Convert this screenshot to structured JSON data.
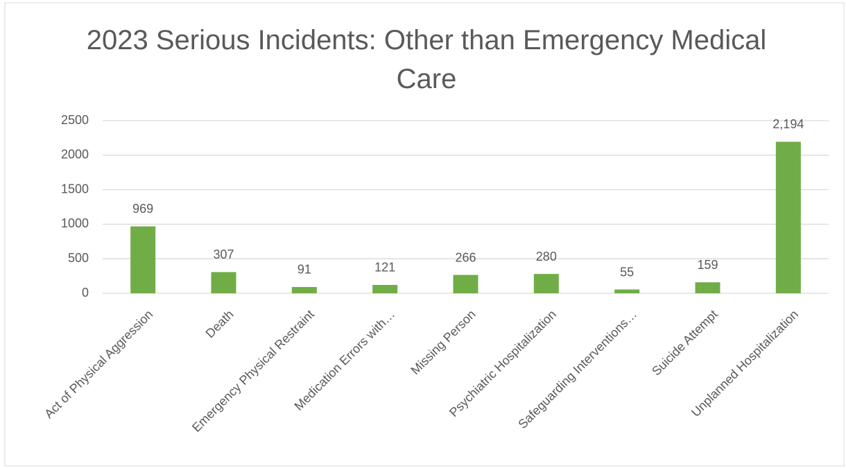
{
  "chart_data": {
    "type": "bar",
    "title": "2023 Serious Incidents: Other than Emergency Medical Care",
    "categories": [
      "Act of Physical Aggression",
      "Death",
      "Emergency Physical Restraint",
      "Medication Errors with…",
      "Missing Person",
      "Psychiatric Hospitalization",
      "Safeguarding Interventions…",
      "Suicide Attempt",
      "Unplanned Hospitalization"
    ],
    "values": [
      969,
      307,
      91,
      121,
      266,
      280,
      55,
      159,
      2194
    ],
    "value_labels": [
      "969",
      "307",
      "91",
      "121",
      "266",
      "280",
      "55",
      "159",
      "2,194"
    ],
    "color": "#70ad47",
    "ylim": [
      0,
      2500
    ],
    "yticks": [
      0,
      500,
      1000,
      1500,
      2000,
      2500
    ],
    "grid": true
  }
}
